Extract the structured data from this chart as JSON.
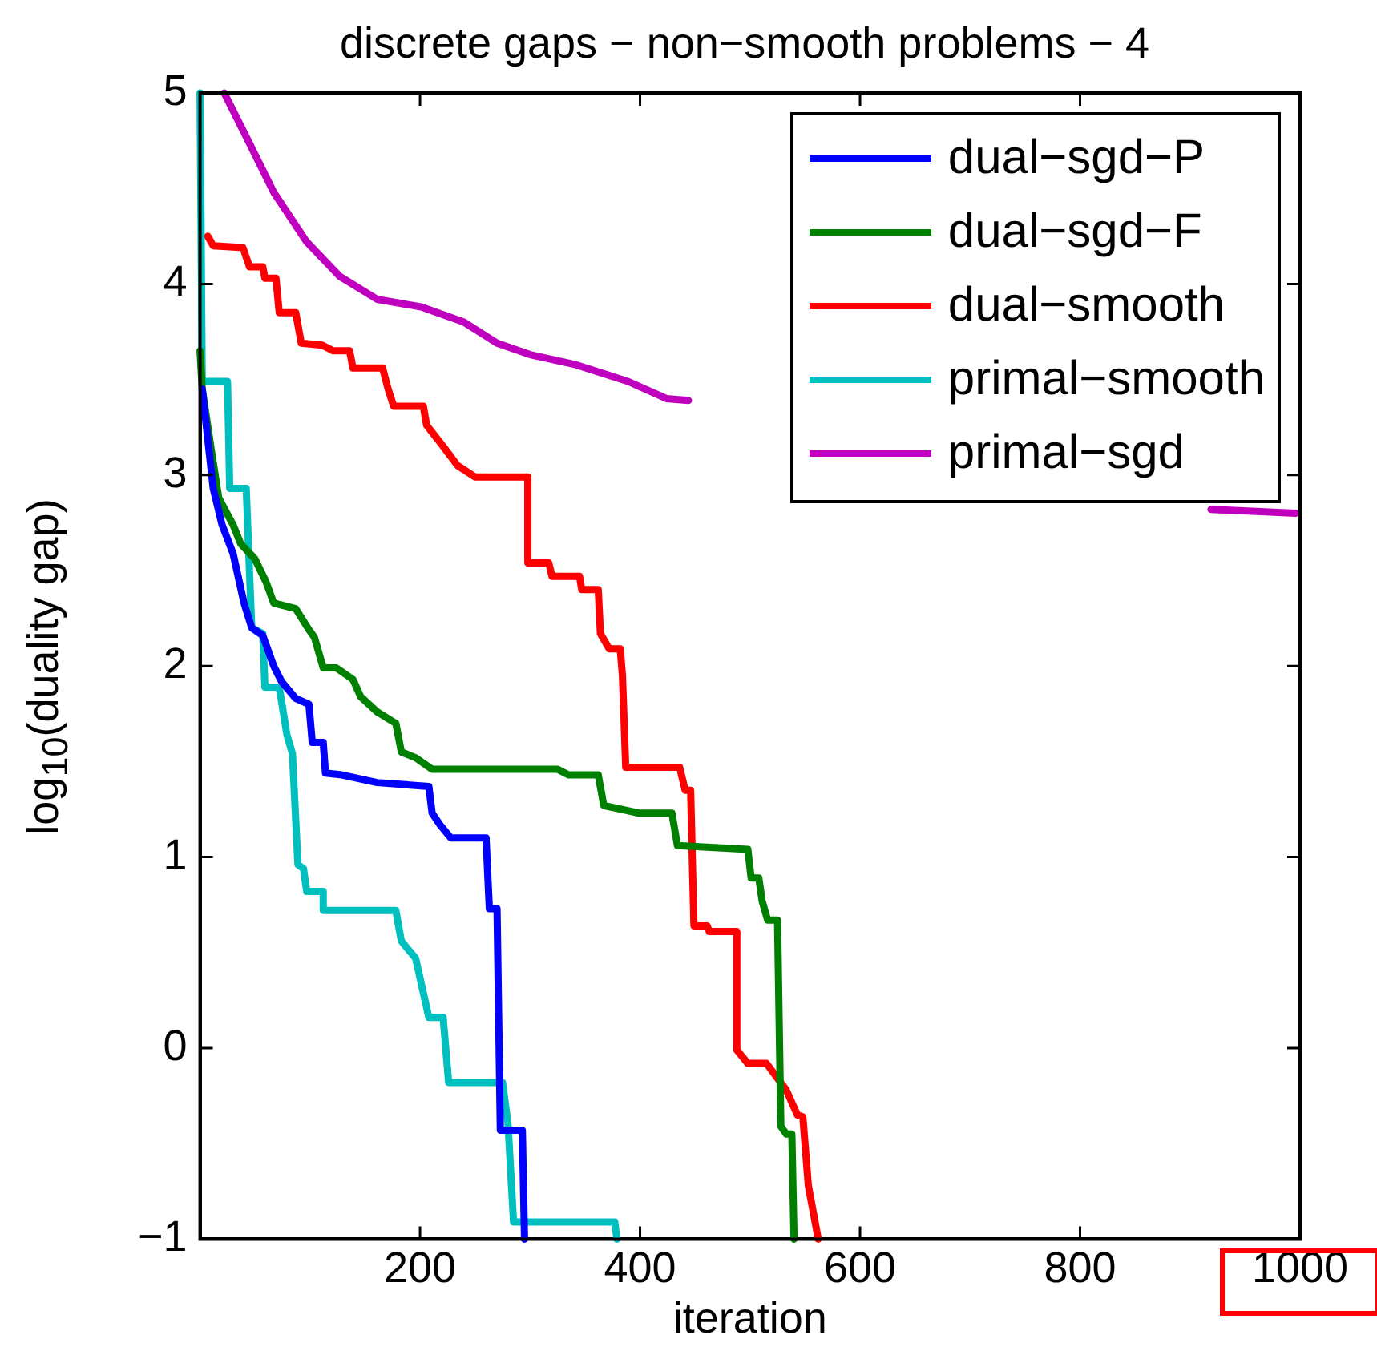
{
  "chart_data": {
    "type": "line",
    "title": "discrete gaps − non−smooth problems − 4",
    "xlabel": "iteration",
    "ylabel": "log$_{10}$(duality gap)",
    "xlim": [
      0,
      1000
    ],
    "xticks": [
      200,
      400,
      600,
      800,
      1000
    ],
    "ylim": [
      -1,
      5
    ],
    "yticks": [
      -1,
      0,
      1,
      2,
      3,
      4,
      5
    ],
    "grid": false,
    "legend": "top right",
    "line_style": "solid",
    "marker": "none",
    "series": [
      {
        "name": "dual−sgd−P",
        "color": "#0000ff",
        "x": [
          2,
          12,
          20,
          30,
          40,
          47,
          57,
          67,
          74,
          87,
          99,
          102,
          112,
          114,
          129,
          161,
          208,
          211,
          218,
          228,
          260,
          263,
          270,
          273,
          293,
          295
        ],
        "values": [
          3.45,
          2.93,
          2.74,
          2.59,
          2.33,
          2.2,
          2.16,
          2.0,
          1.92,
          1.83,
          1.8,
          1.6,
          1.6,
          1.44,
          1.43,
          1.39,
          1.37,
          1.23,
          1.17,
          1.1,
          1.1,
          0.73,
          0.73,
          -0.43,
          -0.43,
          -1
        ]
      },
      {
        "name": "dual−sgd−F",
        "color": "#008000",
        "x": [
          0,
          2,
          10,
          17,
          30,
          37,
          50,
          60,
          67,
          87,
          99,
          104,
          112,
          124,
          139,
          146,
          161,
          178,
          183,
          196,
          211,
          325,
          335,
          362,
          367,
          399,
          429,
          434,
          498,
          501,
          508,
          511,
          516,
          525,
          528,
          533,
          538,
          540
        ],
        "values": [
          3.65,
          3.45,
          3.14,
          2.88,
          2.74,
          2.64,
          2.56,
          2.44,
          2.33,
          2.3,
          2.19,
          2.15,
          1.99,
          1.99,
          1.93,
          1.84,
          1.76,
          1.7,
          1.55,
          1.52,
          1.46,
          1.46,
          1.43,
          1.43,
          1.27,
          1.23,
          1.23,
          1.06,
          1.04,
          0.89,
          0.89,
          0.77,
          0.67,
          0.67,
          -0.41,
          -0.45,
          -0.45,
          -1
        ]
      },
      {
        "name": "dual−smooth",
        "color": "#ff0000",
        "x": [
          7,
          12,
          39,
          45,
          57,
          59,
          69,
          72,
          87,
          92,
          111,
          121,
          136,
          139,
          166,
          171,
          176,
          203,
          206,
          221,
          234,
          250,
          298,
          298,
          317,
          320,
          345,
          347,
          362,
          364,
          372,
          382,
          384,
          387,
          436,
          441,
          446,
          449,
          461,
          463,
          488,
          488,
          498,
          515,
          533,
          543,
          548,
          553,
          562
        ],
        "values": [
          4.25,
          4.2,
          4.19,
          4.09,
          4.09,
          4.03,
          4.03,
          3.85,
          3.85,
          3.69,
          3.68,
          3.65,
          3.65,
          3.56,
          3.56,
          3.45,
          3.36,
          3.36,
          3.26,
          3.15,
          3.05,
          2.99,
          2.99,
          2.54,
          2.54,
          2.47,
          2.47,
          2.4,
          2.4,
          2.17,
          2.09,
          2.09,
          1.95,
          1.47,
          1.47,
          1.35,
          1.35,
          0.64,
          0.64,
          0.61,
          0.61,
          -0.01,
          -0.08,
          -0.08,
          -0.22,
          -0.35,
          -0.36,
          -0.72,
          -1
        ]
      },
      {
        "name": "primal−smooth",
        "color": "#00bfbf",
        "x": [
          0,
          2,
          25,
          27,
          42,
          47,
          57,
          59,
          72,
          79,
          84,
          89,
          94,
          97,
          112,
          112,
          178,
          183,
          196,
          208,
          221,
          226,
          275,
          280,
          285,
          377,
          379
        ],
        "values": [
          5,
          3.49,
          3.49,
          2.93,
          2.93,
          2.2,
          2.17,
          1.89,
          1.89,
          1.64,
          1.54,
          0.96,
          0.94,
          0.82,
          0.82,
          0.72,
          0.72,
          0.56,
          0.47,
          0.16,
          0.16,
          -0.18,
          -0.18,
          -0.4,
          -0.91,
          -0.91,
          -1
        ]
      },
      {
        "name": "primal−sgd",
        "color": "#bf00bf",
        "x": [
          22,
          42,
          67,
          97,
          127,
          161,
          201,
          240,
          270,
          300,
          340,
          389,
          424,
          444,
          500,
          919,
          996
        ],
        "values": [
          5,
          4.77,
          4.48,
          4.22,
          4.04,
          3.92,
          3.88,
          3.8,
          3.69,
          3.63,
          3.58,
          3.49,
          3.4,
          3.39,
          null,
          2.82,
          2.8
        ]
      }
    ]
  }
}
